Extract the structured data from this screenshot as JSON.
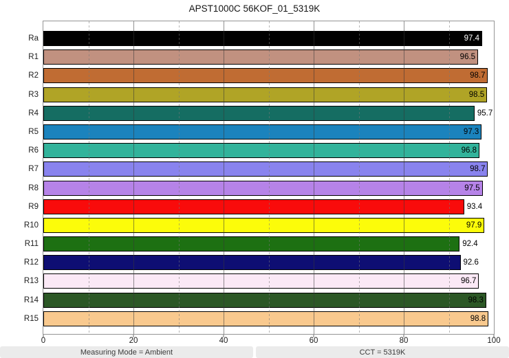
{
  "title": "APST1000C 56KOF_01_5319K",
  "chart_data": {
    "type": "bar",
    "orientation": "horizontal",
    "title": "APST1000C 56KOF_01_5319K",
    "categories": [
      "Ra",
      "R1",
      "R2",
      "R3",
      "R4",
      "R5",
      "R6",
      "R7",
      "R8",
      "R9",
      "R10",
      "R11",
      "R12",
      "R13",
      "R14",
      "R15"
    ],
    "values": [
      97.4,
      96.5,
      98.7,
      98.5,
      95.7,
      97.3,
      96.8,
      98.7,
      97.5,
      93.4,
      97.9,
      92.4,
      92.6,
      96.7,
      98.3,
      98.8
    ],
    "bar_colors": [
      "#000000",
      "#c19180",
      "#c06c33",
      "#b0a426",
      "#156d62",
      "#1b83bd",
      "#32b39b",
      "#8983ee",
      "#b683e8",
      "#f90b0b",
      "#fcfc0a",
      "#1d7012",
      "#0e0e73",
      "#fbe9f6",
      "#2c5826",
      "#f9c98e"
    ],
    "value_label_colors": [
      "#ffffff",
      "#000000",
      "#000000",
      "#000000",
      "#000000",
      "#000000",
      "#000000",
      "#000000",
      "#000000",
      "#000000",
      "#000000",
      "#000000",
      "#000000",
      "#000000",
      "#000000",
      "#000000"
    ],
    "xlabel": "",
    "ylabel": "",
    "xlim": [
      0,
      100
    ],
    "x_major_ticks": [
      0,
      20,
      40,
      60,
      80,
      100
    ],
    "x_minor_gridlines": [
      10,
      30,
      50,
      70,
      90
    ],
    "grid": "vertical, major solid + minor dashed, drawn over bars",
    "legend": "none",
    "bar_border_color": "#000000",
    "frame_color": "#949494"
  },
  "footer": {
    "left": "Measuring Mode = Ambient",
    "right": "CCT = 5319K"
  }
}
